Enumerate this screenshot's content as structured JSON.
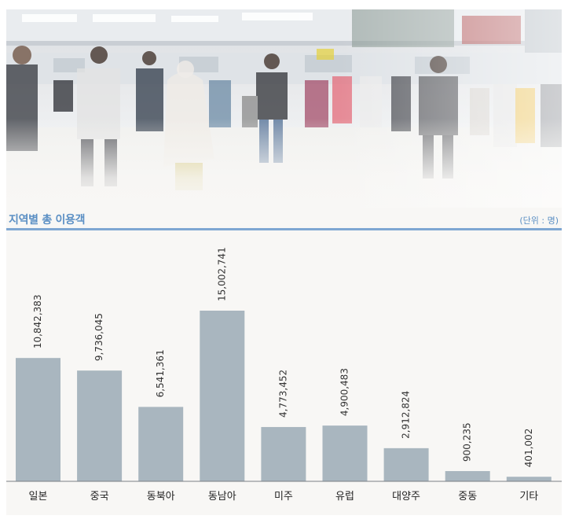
{
  "header": {
    "title": "지역별 총 이용객",
    "unit": "(단위 : 명)"
  },
  "photo": {
    "subject": "airport-terminal-crowd"
  },
  "colors": {
    "accent": "#5b8fc4",
    "rule": "#7ea7d2",
    "bar": "#a9b6bf"
  },
  "chart_data": {
    "type": "bar",
    "title": "지역별 총 이용객",
    "unit": "(단위 : 명)",
    "categories": [
      "일본",
      "중국",
      "동북아",
      "동남아",
      "미주",
      "유럽",
      "대양주",
      "중동",
      "기타"
    ],
    "values": [
      10842383,
      9736045,
      6541361,
      15002741,
      4773452,
      4900483,
      2912824,
      900235,
      401002
    ],
    "value_labels": [
      "10,842,383",
      "9,736,045",
      "6,541,361",
      "15,002,741",
      "4,773,452",
      "4,900,483",
      "2,912,824",
      "900,235",
      "401,002"
    ],
    "ylim": [
      0,
      15002741
    ],
    "grid": false,
    "legend": "none"
  }
}
